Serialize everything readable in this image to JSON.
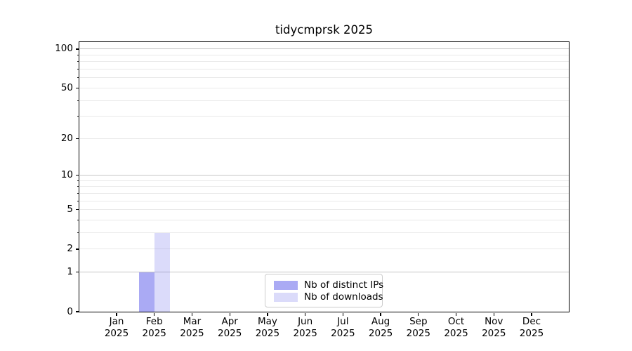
{
  "chart_data": {
    "type": "bar",
    "title": "tidycmprsk 2025",
    "categories": [
      "Jan",
      "Feb",
      "Mar",
      "Apr",
      "May",
      "Jun",
      "Jul",
      "Aug",
      "Sep",
      "Oct",
      "Nov",
      "Dec"
    ],
    "x_year_sublabel": "2025",
    "series": [
      {
        "name": "Nb of distinct IPs",
        "color": "rgba(92,92,233,0.52)",
        "values": [
          0,
          1,
          0,
          0,
          0,
          0,
          0,
          0,
          0,
          0,
          0,
          0
        ]
      },
      {
        "name": "Nb of downloads",
        "color": "rgba(92,92,233,0.22)",
        "values": [
          0,
          3,
          0,
          0,
          0,
          0,
          0,
          0,
          0,
          0,
          0,
          0
        ]
      }
    ],
    "yaxis": {
      "scale": "log10(1+x)",
      "labeled_ticks": [
        0,
        1,
        2,
        5,
        10,
        20,
        50,
        100
      ],
      "decade_gridlines": [
        1,
        10,
        100
      ],
      "minor_gridlines": [
        2,
        3,
        4,
        5,
        6,
        7,
        8,
        9,
        20,
        30,
        40,
        50,
        60,
        70,
        80,
        90
      ],
      "ylim_bottom": 0,
      "ylim_top_approx": 113
    },
    "legend": {
      "position": "bottom-center"
    },
    "grid": true,
    "colors": {
      "decade_grid": "#c4c4c4",
      "minor_grid": "#e9e9e9",
      "axis": "#000000",
      "background": "#ffffff",
      "bar_distinct_ips_approx": "#a9a9f2",
      "bar_downloads_approx": "#dcdcf6"
    }
  }
}
